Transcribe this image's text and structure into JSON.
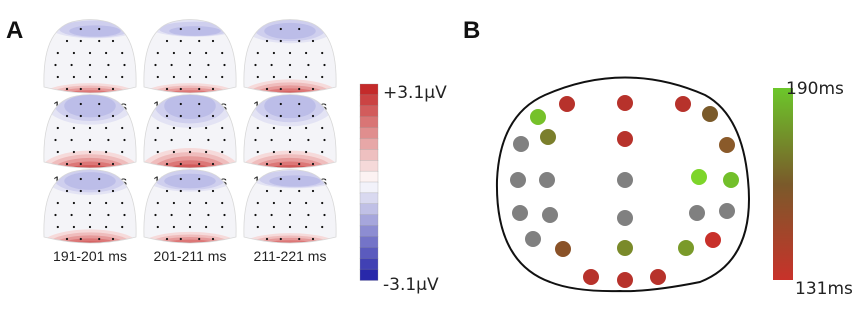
{
  "panel_a": {
    "label": "A",
    "maps": [
      {
        "caption": "131-141 ms",
        "mode": "frontal-weak",
        "pos": 0.55,
        "neg": 0.35
      },
      {
        "caption": "141-151 ms",
        "mode": "frontal-weak",
        "pos": 0.55,
        "neg": 0.3
      },
      {
        "caption": "151-161 ms",
        "mode": "frontal",
        "pos": 0.7,
        "neg": 0.5
      },
      {
        "caption": "161-171 ms",
        "mode": "frontal",
        "pos": 0.85,
        "neg": 0.7
      },
      {
        "caption": "171-181 ms",
        "mode": "frontal",
        "pos": 0.95,
        "neg": 0.8
      },
      {
        "caption": "181-191 ms",
        "mode": "frontal",
        "pos": 0.85,
        "neg": 0.75
      },
      {
        "caption": "191-201 ms",
        "mode": "frontal",
        "pos": 0.7,
        "neg": 0.55
      },
      {
        "caption": "201-211 ms",
        "mode": "frontal",
        "pos": 0.6,
        "neg": 0.45
      },
      {
        "caption": "211-221 ms",
        "mode": "frontal-weak",
        "pos": 0.55,
        "neg": 0.35
      }
    ],
    "colorbar": {
      "max_label": "+3.1μV",
      "min_label": "-3.1μV",
      "steps": 18
    }
  },
  "panel_b": {
    "label": "B",
    "colorbar": {
      "top_label": "190ms",
      "bottom_label": "131ms",
      "top_color": "#6cc72a",
      "mid_color": "#7a5a2a",
      "bottom_color": "#c8322a"
    },
    "electrodes": [
      {
        "id": "e1",
        "color": "#b7322b"
      },
      {
        "id": "e2",
        "color": "#b7322b"
      },
      {
        "id": "e3",
        "color": "#b7322b"
      },
      {
        "id": "e4",
        "color": "#76c12a"
      },
      {
        "id": "e5",
        "color": "#7a5a2a"
      },
      {
        "id": "e6",
        "color": "#b7322b"
      },
      {
        "id": "e7",
        "color": "#7b7f2c"
      },
      {
        "id": "e8",
        "color": "#808080"
      },
      {
        "id": "e9",
        "color": "#8a5a2a"
      },
      {
        "id": "e10",
        "color": "#808080"
      },
      {
        "id": "e11",
        "color": "#808080"
      },
      {
        "id": "e12",
        "color": "#808080"
      },
      {
        "id": "e13",
        "color": "#7dd52a"
      },
      {
        "id": "e14",
        "color": "#72bf2a"
      },
      {
        "id": "e15",
        "color": "#808080"
      },
      {
        "id": "e16",
        "color": "#808080"
      },
      {
        "id": "e17",
        "color": "#808080"
      },
      {
        "id": "e18",
        "color": "#808080"
      },
      {
        "id": "e19",
        "color": "#808080"
      },
      {
        "id": "e20",
        "color": "#808080"
      },
      {
        "id": "e21",
        "color": "#8a5228"
      },
      {
        "id": "e22",
        "color": "#7a8a2a"
      },
      {
        "id": "e23",
        "color": "#7a9a2a"
      },
      {
        "id": "e24",
        "color": "#c8302a"
      },
      {
        "id": "e25",
        "color": "#b7322b"
      },
      {
        "id": "e26",
        "color": "#b7322b"
      },
      {
        "id": "e27",
        "color": "#b7322b"
      }
    ]
  }
}
